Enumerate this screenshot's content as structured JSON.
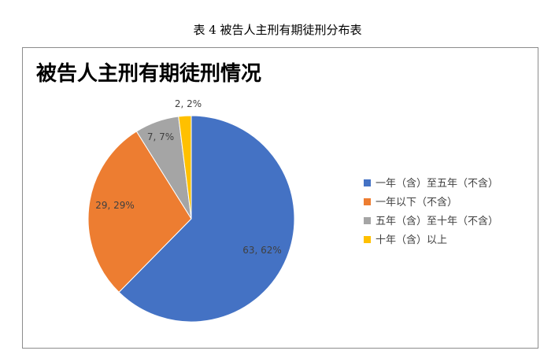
{
  "caption": "表 4 被告人主刑有期徒刑分布表",
  "chart_data": {
    "type": "pie",
    "title": "被告人主刑有期徒刑情况",
    "categories": [
      "一年（含）至五年（不含）",
      "一年以下（不含）",
      "五年（含）至十年（不含）",
      "十年（含）以上"
    ],
    "values": [
      63,
      29,
      7,
      2
    ],
    "data_labels": [
      "63, 62%",
      "29, 29%",
      "7, 7%",
      "2, 2%"
    ],
    "colors": [
      "#4472c4",
      "#ed7d31",
      "#a5a5a5",
      "#ffc000"
    ],
    "start_angle_deg": 0,
    "direction": "clockwise",
    "legend_position": "right"
  }
}
